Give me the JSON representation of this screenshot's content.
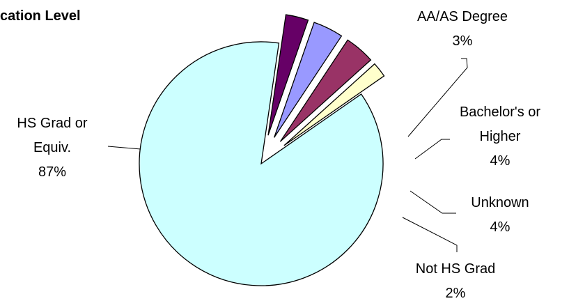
{
  "chart_data": {
    "type": "pie",
    "title": "cation Level",
    "slices": [
      {
        "label_lines": [
          "HS Grad or",
          "Equiv.",
          "87%"
        ],
        "category": "HS Grad or Equiv.",
        "value": 87,
        "color": "#ccffff"
      },
      {
        "label_lines": [
          "AA/AS Degree",
          "3%"
        ],
        "category": "AA/AS Degree",
        "value": 3,
        "color": "#660066"
      },
      {
        "label_lines": [
          "Bachelor's or",
          "Higher",
          "4%"
        ],
        "category": "Bachelor's or Higher",
        "value": 4,
        "color": "#9999ff"
      },
      {
        "label_lines": [
          "Unknown",
          "4%"
        ],
        "category": "Unknown",
        "value": 4,
        "color": "#993366"
      },
      {
        "label_lines": [
          "Not HS Grad",
          "2%"
        ],
        "category": "Not HS Grad",
        "value": 2,
        "color": "#ffffcc"
      }
    ],
    "legend": "none"
  }
}
